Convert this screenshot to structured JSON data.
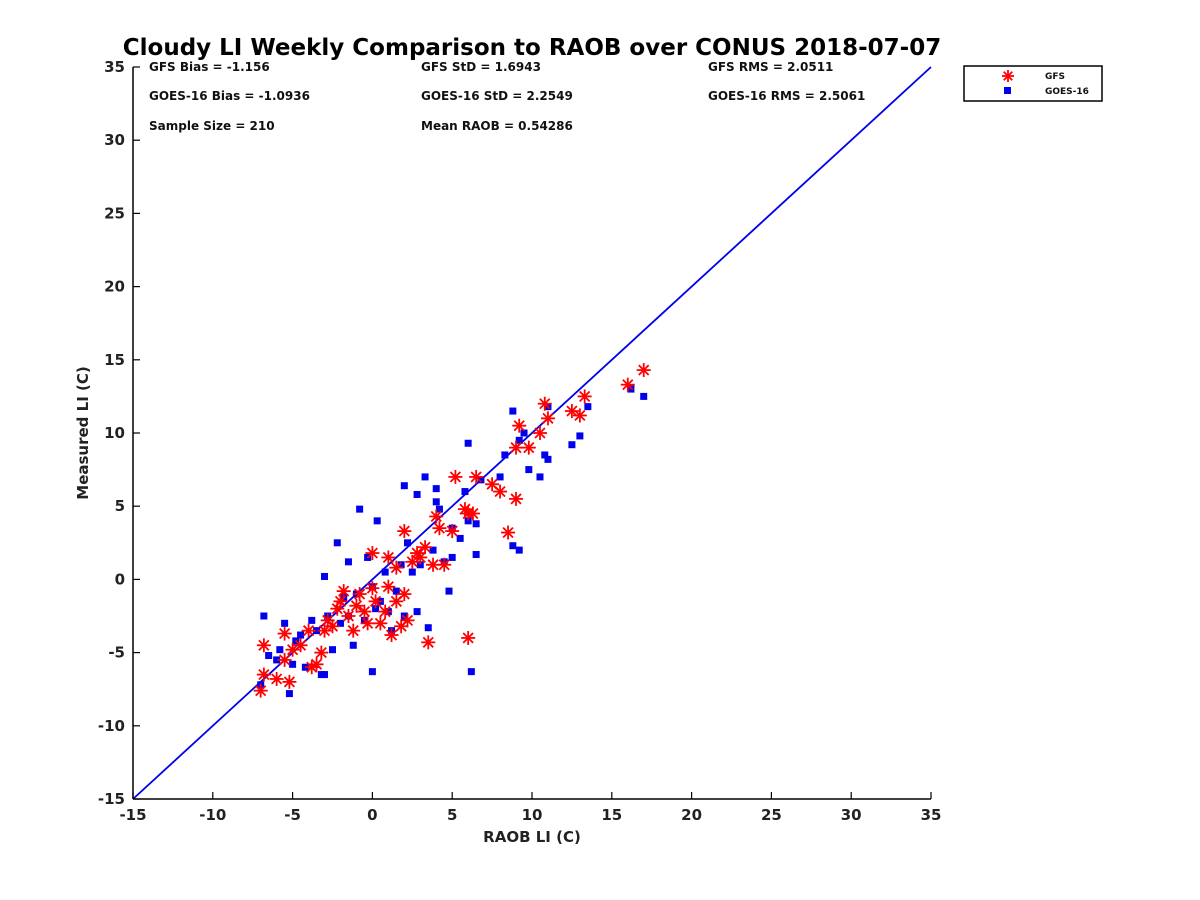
{
  "chart_data": {
    "type": "scatter",
    "title": "Cloudy LI Weekly Comparison to RAOB over CONUS 2018-07-07",
    "xlabel": "RAOB LI (C)",
    "ylabel": "Measured LI (C)",
    "xlim": [
      -15,
      35
    ],
    "ylim": [
      -15,
      35
    ],
    "x_ticks": [
      "-15",
      "-10",
      "-5",
      "0",
      "5",
      "10",
      "15",
      "20",
      "25",
      "30",
      "35"
    ],
    "y_ticks": [
      "-15",
      "-10",
      "-5",
      "0",
      "5",
      "10",
      "15",
      "20",
      "25",
      "30",
      "35"
    ],
    "grid": false,
    "legend_position": "top-right outside",
    "reference_line": {
      "from": [
        -15,
        -15
      ],
      "to": [
        35,
        35
      ],
      "color": "#0000ee"
    },
    "stats": [
      [
        "GFS Bias = -1.156",
        "GFS StD = 1.6943",
        "GFS RMS = 2.0511"
      ],
      [
        "GOES-16 Bias = -1.0936",
        "GOES-16 StD = 2.2549",
        "GOES-16 RMS = 2.5061"
      ],
      [
        "Sample Size = 210",
        "Mean RAOB = 0.54286",
        ""
      ]
    ],
    "series": [
      {
        "name": "GFS",
        "marker": "asterisk",
        "color": "#ff0000",
        "points": [
          [
            -7,
            -7.6
          ],
          [
            -6.8,
            -6.5
          ],
          [
            -6.8,
            -4.5
          ],
          [
            -6,
            -6.8
          ],
          [
            -5.5,
            -5.5
          ],
          [
            -5.2,
            -7
          ],
          [
            -5.5,
            -3.7
          ],
          [
            -5,
            -4.8
          ],
          [
            -4.5,
            -4.5
          ],
          [
            -4,
            -3.5
          ],
          [
            -3.8,
            -6
          ],
          [
            -3.5,
            -5.8
          ],
          [
            -3.2,
            -5
          ],
          [
            -3,
            -3.5
          ],
          [
            -2.8,
            -2.8
          ],
          [
            -2.5,
            -3.2
          ],
          [
            -2.2,
            -2
          ],
          [
            -2,
            -1.5
          ],
          [
            -1.8,
            -0.8
          ],
          [
            -1.5,
            -2.5
          ],
          [
            -1.2,
            -3.5
          ],
          [
            -1,
            -1.8
          ],
          [
            -0.8,
            -1
          ],
          [
            -0.5,
            -2.2
          ],
          [
            -0.3,
            -3
          ],
          [
            0,
            -0.6
          ],
          [
            0,
            1.8
          ],
          [
            0.2,
            -1.5
          ],
          [
            0.5,
            -3
          ],
          [
            0.8,
            -2.2
          ],
          [
            1,
            -0.5
          ],
          [
            1,
            1.5
          ],
          [
            1.2,
            -3.8
          ],
          [
            1.5,
            -1.5
          ],
          [
            1.5,
            0.8
          ],
          [
            1.8,
            -3.2
          ],
          [
            2,
            -1
          ],
          [
            2,
            3.3
          ],
          [
            2.2,
            -2.8
          ],
          [
            2.5,
            1.2
          ],
          [
            2.8,
            1.8
          ],
          [
            3,
            1.5
          ],
          [
            3.3,
            2.2
          ],
          [
            3.5,
            -4.3
          ],
          [
            3.8,
            1
          ],
          [
            4,
            4.3
          ],
          [
            4.2,
            3.5
          ],
          [
            4.5,
            1
          ],
          [
            5,
            3.3
          ],
          [
            5.2,
            7
          ],
          [
            5.8,
            4.8
          ],
          [
            6,
            -4
          ],
          [
            6,
            4.5
          ],
          [
            6.3,
            4.5
          ],
          [
            6.5,
            7
          ],
          [
            7.5,
            6.5
          ],
          [
            8,
            6
          ],
          [
            8.5,
            3.2
          ],
          [
            9,
            5.5
          ],
          [
            9,
            9
          ],
          [
            9.2,
            10.5
          ],
          [
            9.8,
            9
          ],
          [
            10.5,
            10
          ],
          [
            10.8,
            12
          ],
          [
            11,
            11
          ],
          [
            12.5,
            11.5
          ],
          [
            13,
            11.2
          ],
          [
            13.3,
            12.5
          ],
          [
            16,
            13.3
          ],
          [
            17,
            14.3
          ]
        ]
      },
      {
        "name": "GOES-16",
        "marker": "square",
        "color": "#0000ee",
        "points": [
          [
            -7,
            -7.2
          ],
          [
            -6.8,
            -2.5
          ],
          [
            -6.5,
            -5.2
          ],
          [
            -6,
            -5.5
          ],
          [
            -5.8,
            -4.8
          ],
          [
            -5.5,
            -3
          ],
          [
            -5.2,
            -7.8
          ],
          [
            -5,
            -5.8
          ],
          [
            -4.8,
            -4.2
          ],
          [
            -4.5,
            -3.8
          ],
          [
            -4.2,
            -6
          ],
          [
            -3.8,
            -2.8
          ],
          [
            -3.5,
            -3.5
          ],
          [
            -3.2,
            -6.5
          ],
          [
            -3,
            0.2
          ],
          [
            -3,
            -6.5
          ],
          [
            -2.8,
            -2.5
          ],
          [
            -2.5,
            -4.8
          ],
          [
            -2.2,
            2.5
          ],
          [
            -2,
            -3
          ],
          [
            -1.8,
            -1.2
          ],
          [
            -1.5,
            -2.5
          ],
          [
            -1.5,
            1.2
          ],
          [
            -1.2,
            -4.5
          ],
          [
            -1,
            -1
          ],
          [
            -0.8,
            4.8
          ],
          [
            -0.5,
            -2.8
          ],
          [
            -0.3,
            1.5
          ],
          [
            0,
            -6.3
          ],
          [
            0,
            -0.5
          ],
          [
            0.2,
            -2
          ],
          [
            0.3,
            4
          ],
          [
            0.5,
            -1.5
          ],
          [
            0.8,
            0.5
          ],
          [
            1,
            -2.2
          ],
          [
            1.2,
            -3.5
          ],
          [
            1.5,
            -0.8
          ],
          [
            1.8,
            1
          ],
          [
            2,
            6.4
          ],
          [
            2,
            -2.5
          ],
          [
            2.2,
            2.5
          ],
          [
            2.5,
            0.5
          ],
          [
            2.8,
            5.8
          ],
          [
            2.8,
            -2.2
          ],
          [
            3,
            1
          ],
          [
            3.3,
            7
          ],
          [
            3.5,
            -3.3
          ],
          [
            3.8,
            2
          ],
          [
            4,
            5.3
          ],
          [
            4,
            6.2
          ],
          [
            4.2,
            4.8
          ],
          [
            4.5,
            1.2
          ],
          [
            4.8,
            -0.8
          ],
          [
            5,
            3.5
          ],
          [
            5,
            1.5
          ],
          [
            5.5,
            2.8
          ],
          [
            5.8,
            6
          ],
          [
            6,
            9.3
          ],
          [
            6,
            4
          ],
          [
            6.5,
            3.8
          ],
          [
            6.5,
            1.7
          ],
          [
            6.8,
            6.8
          ],
          [
            6.2,
            -6.3
          ],
          [
            8,
            7
          ],
          [
            8.3,
            8.5
          ],
          [
            8.8,
            11.5
          ],
          [
            8.8,
            2.3
          ],
          [
            9.2,
            2
          ],
          [
            9.2,
            9.5
          ],
          [
            9.5,
            10
          ],
          [
            9.8,
            7.5
          ],
          [
            10.5,
            7
          ],
          [
            10.8,
            8.5
          ],
          [
            11,
            8.2
          ],
          [
            11,
            11.8
          ],
          [
            12.5,
            9.2
          ],
          [
            13,
            9.8
          ],
          [
            13.5,
            11.8
          ],
          [
            16.2,
            13
          ],
          [
            17,
            12.5
          ]
        ]
      }
    ]
  },
  "legend": {
    "items": [
      {
        "label": "GFS"
      },
      {
        "label": "GOES-16"
      }
    ]
  }
}
